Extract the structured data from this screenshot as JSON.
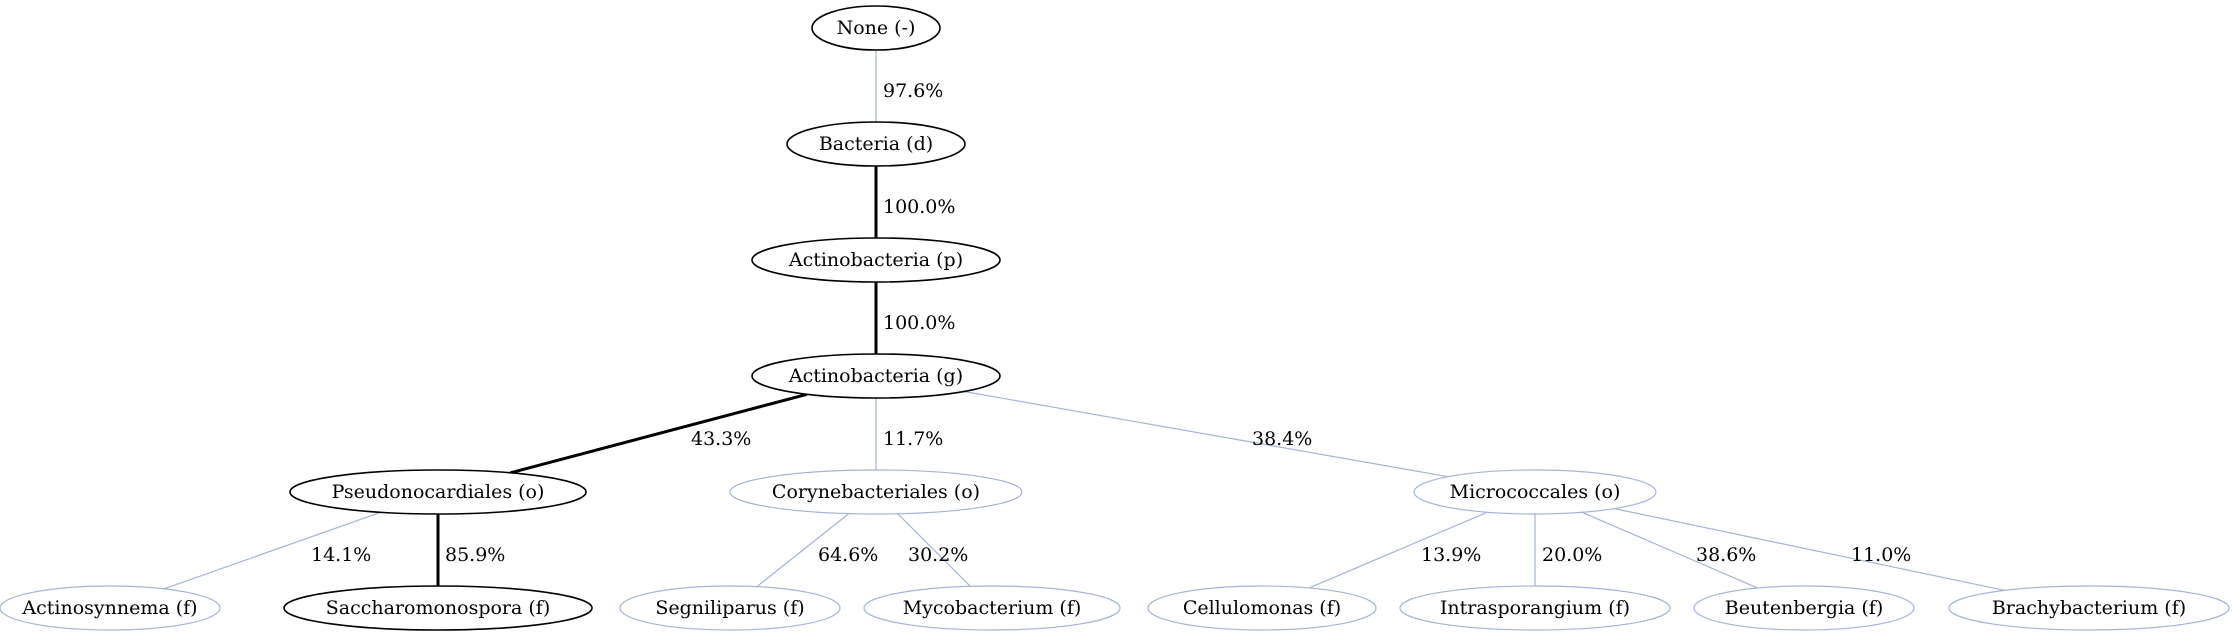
{
  "colors": {
    "strong": "#000000",
    "weak": "#a3b4d6"
  },
  "nodes": [
    {
      "id": "n0",
      "label": "None (-)",
      "style": "strong"
    },
    {
      "id": "n1",
      "label": "Bacteria (d)",
      "style": "strong"
    },
    {
      "id": "n2",
      "label": "Actinobacteria (p)",
      "style": "strong"
    },
    {
      "id": "n3",
      "label": "Actinobacteria (g)",
      "style": "strong"
    },
    {
      "id": "n4",
      "label": "Pseudonocardiales (o)",
      "style": "strong"
    },
    {
      "id": "n5",
      "label": "Corynebacteriales (o)",
      "style": "weak"
    },
    {
      "id": "n6",
      "label": "Micrococcales (o)",
      "style": "weak"
    },
    {
      "id": "n7",
      "label": "Actinosynnema (f)",
      "style": "weak"
    },
    {
      "id": "n8",
      "label": "Saccharomonospora (f)",
      "style": "strong"
    },
    {
      "id": "n9",
      "label": "Segniliparus (f)",
      "style": "weak"
    },
    {
      "id": "n10",
      "label": "Mycobacterium (f)",
      "style": "weak"
    },
    {
      "id": "n11",
      "label": "Cellulomonas (f)",
      "style": "weak"
    },
    {
      "id": "n12",
      "label": "Intrasporangium (f)",
      "style": "weak"
    },
    {
      "id": "n13",
      "label": "Beutenbergia (f)",
      "style": "weak"
    },
    {
      "id": "n14",
      "label": "Brachybacterium (f)",
      "style": "weak"
    }
  ],
  "edges": [
    {
      "from": "n0",
      "to": "n1",
      "label": "97.6%",
      "style": "weak"
    },
    {
      "from": "n1",
      "to": "n2",
      "label": "100.0%",
      "style": "strong"
    },
    {
      "from": "n2",
      "to": "n3",
      "label": "100.0%",
      "style": "strong"
    },
    {
      "from": "n3",
      "to": "n4",
      "label": "43.3%",
      "style": "strong"
    },
    {
      "from": "n3",
      "to": "n5",
      "label": "11.7%",
      "style": "weak"
    },
    {
      "from": "n3",
      "to": "n6",
      "label": "38.4%",
      "style": "weak"
    },
    {
      "from": "n4",
      "to": "n7",
      "label": "14.1%",
      "style": "weak"
    },
    {
      "from": "n4",
      "to": "n8",
      "label": "85.9%",
      "style": "strong"
    },
    {
      "from": "n5",
      "to": "n9",
      "label": "64.6%",
      "style": "weak"
    },
    {
      "from": "n5",
      "to": "n10",
      "label": "30.2%",
      "style": "weak"
    },
    {
      "from": "n6",
      "to": "n11",
      "label": "13.9%",
      "style": "weak"
    },
    {
      "from": "n6",
      "to": "n12",
      "label": "20.0%",
      "style": "weak"
    },
    {
      "from": "n6",
      "to": "n13",
      "label": "38.6%",
      "style": "weak"
    },
    {
      "from": "n6",
      "to": "n14",
      "label": "11.0%",
      "style": "weak"
    }
  ]
}
